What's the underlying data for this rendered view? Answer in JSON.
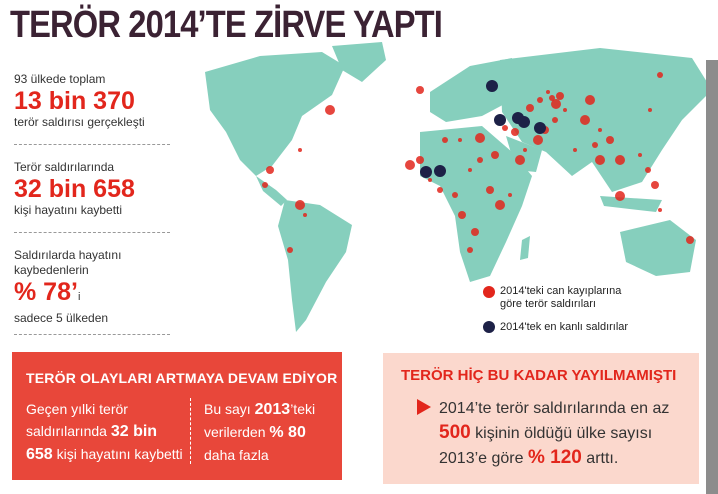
{
  "header": {
    "title": "TERÖR 2014’TE ZİRVE YAPTI"
  },
  "stats": [
    {
      "lead": "93 ülkede toplam",
      "figure": "13 bin 370",
      "tail": "terör saldırısı gerçekleşti"
    },
    {
      "lead": "Terör saldırılarında",
      "figure": "32 bin 658",
      "tail": "kişi hayatını kaybetti"
    },
    {
      "lead": "Saldırılarda hayatını",
      "lead2": "kaybedenlerin",
      "figure": "% 78’",
      "suffix": "i",
      "tail": "sadece 5 ülkeden"
    }
  ],
  "legend": [
    {
      "line1": "2014'teki can kayıplarına",
      "line2": "göre terör saldırıları"
    },
    {
      "line1": "2014'tek en kanlı saldırılar"
    }
  ],
  "box_left": {
    "title": "TERÖR OLAYLARI ARTMAYA DEVAM EDİYOR",
    "left": [
      "Geçen yılki terör",
      "saldırılarında",
      "32 bin",
      "658",
      "kişi hayatını kaybetti"
    ],
    "right": [
      "Bu sayı",
      "2013",
      "’teki",
      "verilerden",
      "% 80",
      "daha fazla"
    ]
  },
  "box_right": {
    "title": "TERÖR HİÇ BU KADAR YAYILMAMIŞTI",
    "lines": [
      "2014’te terör saldırılarında en az",
      "500",
      "kişinin öldüğü ülke sayısı",
      "2013’e göre",
      "% 120",
      "arttı."
    ]
  }
}
